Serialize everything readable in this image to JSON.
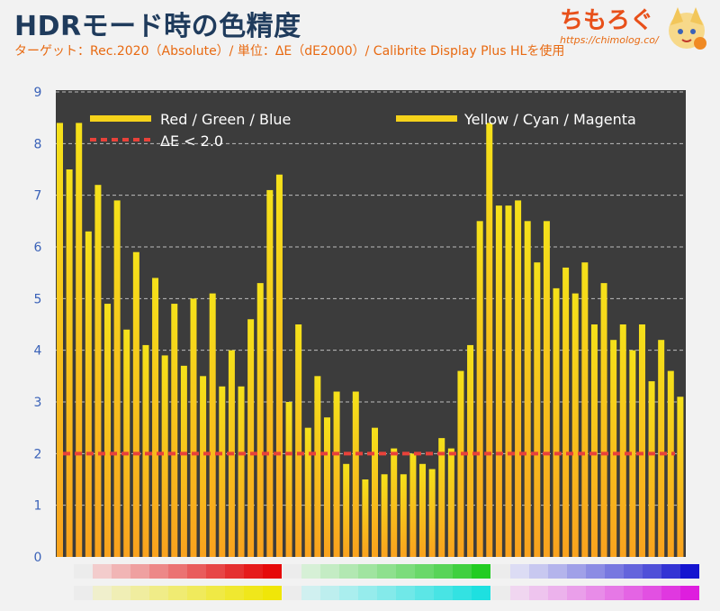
{
  "header": {
    "title": "HDRモード時の色精度",
    "subtitle": "ターゲット：Rec.2020（Absolute）/ 単位：ΔE（dE2000）/ Calibrite Display Plus HLを使用",
    "brand": "ちもろぐ",
    "brand_url": "https://chimolog.co/"
  },
  "colors": {
    "plot_bg": "#3c3c3c",
    "bar_top": "#f5e11a",
    "bar_bottom": "#f9a21e",
    "threshold": "#e8423a",
    "tick": "#3a62b8",
    "title": "#1f3b5c",
    "subtitle": "#e86a12"
  },
  "chart_data": {
    "type": "bar",
    "ylim": [
      0,
      9
    ],
    "yticks": [
      "0",
      "1",
      "2",
      "3",
      "4",
      "5",
      "6",
      "7",
      "8",
      "9"
    ],
    "grid": true,
    "legend": [
      {
        "label": "Red / Green / Blue",
        "style": "bar"
      },
      {
        "label": "Yellow / Cyan / Magenta",
        "style": "bar"
      },
      {
        "label": "ΔE < 2.0",
        "style": "dashed"
      }
    ],
    "threshold": 2.0,
    "series": [
      {
        "values": [
          8.4,
          7.5,
          8.4,
          6.3,
          7.2,
          4.9,
          6.9,
          4.4,
          5.9,
          4.1,
          5.4,
          3.9,
          4.9,
          3.7,
          5.0,
          3.5,
          5.1,
          3.3,
          4.0,
          3.3,
          4.6,
          5.3,
          7.1,
          7.4,
          3.0,
          4.5,
          2.5,
          3.5,
          2.7,
          3.2,
          1.8,
          3.2,
          1.5,
          2.5,
          1.6,
          2.1,
          1.6,
          2.0,
          1.8,
          1.7,
          2.3,
          2.1,
          3.6,
          4.1,
          6.5,
          8.4,
          6.8,
          6.8,
          6.9,
          6.5,
          5.7,
          6.5,
          5.2,
          5.6,
          5.1,
          5.7,
          4.5,
          5.3,
          4.2,
          4.5,
          4.0,
          4.5,
          3.4,
          4.2,
          3.6,
          3.1
        ]
      }
    ],
    "swatch_rows": [
      [
        "#ececec",
        "#f3cccc",
        "#f1b5b5",
        "#efa0a0",
        "#ed8888",
        "#eb7373",
        "#e95c5c",
        "#e74646",
        "#e53030",
        "#e61b1b",
        "#e60a0a",
        "#ececec",
        "#d6f0d6",
        "#c4ecc4",
        "#b2e8b2",
        "#a0e4a0",
        "#8ee08e",
        "#7cdc7c",
        "#6ad86a",
        "#58d458",
        "#40d040",
        "#22cc22",
        "#ececec",
        "#dcdcf4",
        "#c8c8f0",
        "#b4b4ec",
        "#a0a0e8",
        "#8c8ce4",
        "#7878e0",
        "#6464dc",
        "#5050d8",
        "#3333d4",
        "#1515d0"
      ],
      [
        "#ececec",
        "#f0efcc",
        "#f0eeb5",
        "#f0ed9f",
        "#f0ec88",
        "#f0eb72",
        "#f0ea5c",
        "#f0e945",
        "#f0e830",
        "#f0e71b",
        "#f0e608",
        "#ececec",
        "#d0f0f0",
        "#bdeeee",
        "#aaeeee",
        "#96ecec",
        "#84eaea",
        "#70e8e8",
        "#5ce6e6",
        "#48e4e4",
        "#33e2e2",
        "#1ee0e0",
        "#ececec",
        "#f0d6f0",
        "#eec4ee",
        "#ecb2ec",
        "#ea9fea",
        "#e88ce8",
        "#e678e6",
        "#e464e4",
        "#e250e2",
        "#e038e0",
        "#de1ede"
      ]
    ]
  }
}
